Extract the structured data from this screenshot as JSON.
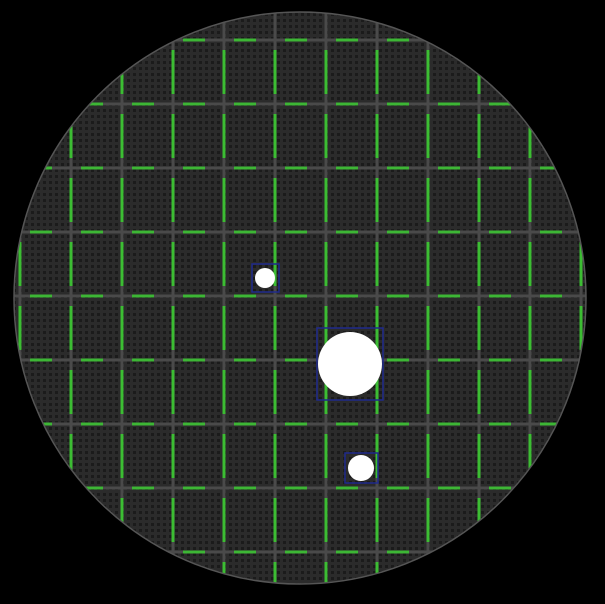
{
  "image": {
    "subject": "wafer",
    "background_color": "#000000",
    "wafer_color": "#2a2a2a",
    "grid_line_color": "#4a4a4a",
    "die_pattern_color": "#1d1d1d",
    "marker_color": "#39d12f",
    "defect_fill_color": "#ffffff",
    "defect_box_color": "#1f2a8c"
  },
  "defects": [
    {
      "name": "defect-small-left"
    },
    {
      "name": "defect-large-center"
    },
    {
      "name": "defect-small-bottom"
    }
  ]
}
